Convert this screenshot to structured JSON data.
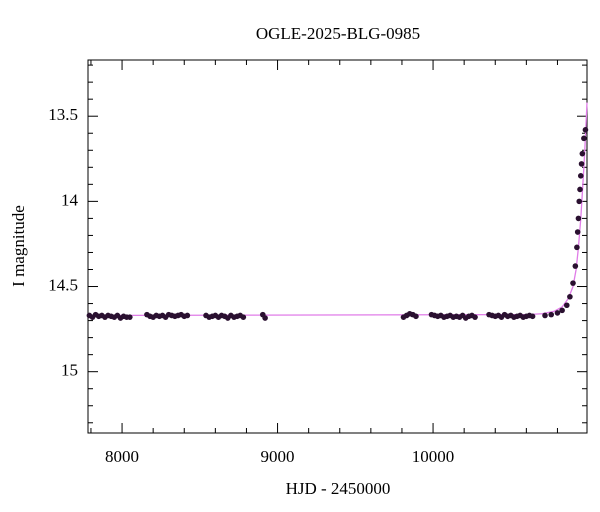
{
  "chart_data": {
    "type": "scatter",
    "title": "OGLE-2025-BLG-0985",
    "x_label": "HJD - 2450000",
    "y_label": "I magnitude",
    "xlim": [
      7781,
      10990
    ],
    "ylim": [
      15.36,
      13.17
    ],
    "xticks": [
      8000,
      9000,
      10000
    ],
    "yticks": [
      13.5,
      14,
      14.5,
      15
    ],
    "xminorticks": [
      7800,
      8200,
      8400,
      8600,
      8800,
      9200,
      9400,
      9600,
      9800,
      10200,
      10400,
      10600,
      10800
    ],
    "yminorticks": [
      13.2,
      13.3,
      13.4,
      13.6,
      13.7,
      13.8,
      13.9,
      14.1,
      14.2,
      14.3,
      14.4,
      14.6,
      14.7,
      14.8,
      14.9,
      15.1,
      15.2,
      15.3
    ],
    "series": [
      {
        "style": "line",
        "color": "#e07ce8",
        "x": [
          7781,
          10600,
          10700,
          10780,
          10830,
          10870,
          10900,
          10920,
          10935,
          10950,
          10960,
          10970,
          10980,
          10990
        ],
        "values": [
          14.67,
          14.665,
          14.66,
          14.645,
          14.62,
          14.57,
          14.5,
          14.4,
          14.27,
          14.1,
          13.95,
          13.8,
          13.62,
          13.42
        ]
      },
      {
        "style": "points",
        "color": "#2a1030",
        "x": [
          7790,
          7810,
          7830,
          7850,
          7870,
          7890,
          7910,
          7930,
          7950,
          7970,
          7990,
          8010,
          8030,
          8050,
          8160,
          8180,
          8200,
          8220,
          8240,
          8260,
          8280,
          8300,
          8320,
          8340,
          8360,
          8380,
          8400,
          8420,
          8540,
          8560,
          8580,
          8600,
          8620,
          8640,
          8660,
          8680,
          8700,
          8720,
          8740,
          8760,
          8780,
          8905,
          8920,
          9810,
          9830,
          9850,
          9870,
          9890,
          9990,
          10010,
          10030,
          10050,
          10070,
          10090,
          10110,
          10130,
          10150,
          10170,
          10190,
          10210,
          10230,
          10250,
          10270,
          10360,
          10380,
          10400,
          10420,
          10440,
          10460,
          10480,
          10500,
          10520,
          10540,
          10560,
          10580,
          10600,
          10620,
          10640,
          10720,
          10760,
          10800,
          10830,
          10860,
          10880,
          10900,
          10915,
          10925,
          10930,
          10935,
          10940,
          10945,
          10950,
          10955,
          10960,
          10970,
          10980
        ],
        "values": [
          14.67,
          14.68,
          14.665,
          14.675,
          14.67,
          14.68,
          14.67,
          14.675,
          14.68,
          14.67,
          14.685,
          14.675,
          14.68,
          14.68,
          14.665,
          14.675,
          14.68,
          14.67,
          14.675,
          14.67,
          14.68,
          14.665,
          14.67,
          14.675,
          14.67,
          14.665,
          14.675,
          14.67,
          14.67,
          14.68,
          14.675,
          14.67,
          14.68,
          14.67,
          14.675,
          14.685,
          14.67,
          14.68,
          14.675,
          14.67,
          14.68,
          14.665,
          14.685,
          14.68,
          14.67,
          14.66,
          14.665,
          14.675,
          14.665,
          14.67,
          14.675,
          14.67,
          14.68,
          14.675,
          14.67,
          14.68,
          14.675,
          14.68,
          14.67,
          14.685,
          14.675,
          14.67,
          14.68,
          14.665,
          14.67,
          14.675,
          14.67,
          14.68,
          14.665,
          14.675,
          14.67,
          14.68,
          14.675,
          14.67,
          14.68,
          14.675,
          14.67,
          14.675,
          14.67,
          14.665,
          14.655,
          14.64,
          14.61,
          14.56,
          14.48,
          14.38,
          14.27,
          14.18,
          14.1,
          14.0,
          13.93,
          13.85,
          13.78,
          13.72,
          13.63,
          13.58
        ]
      }
    ]
  }
}
